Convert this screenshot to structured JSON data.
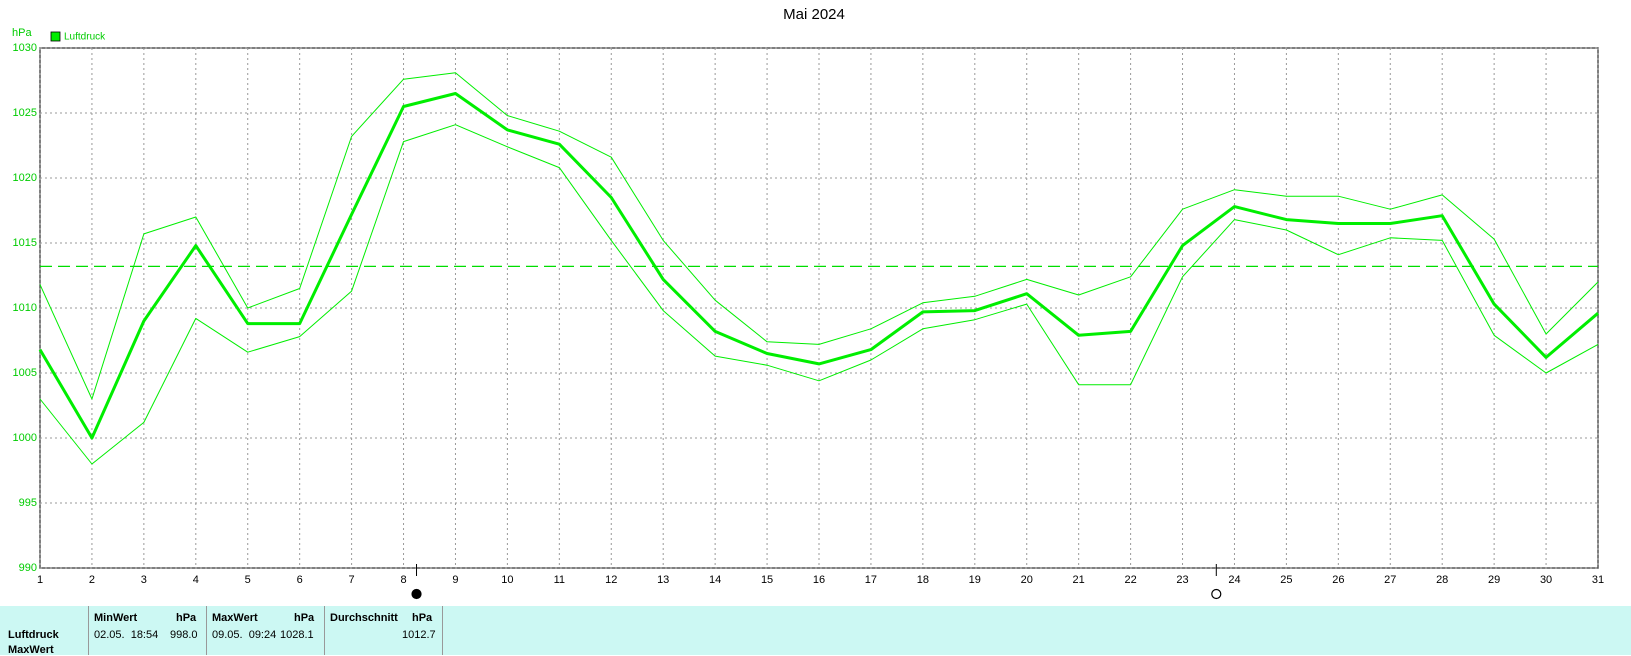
{
  "chart_data": {
    "type": "line",
    "title": "Mai 2024",
    "y_axis_label": "hPa",
    "x": [
      1,
      2,
      3,
      4,
      5,
      6,
      7,
      8,
      9,
      10,
      11,
      12,
      13,
      14,
      15,
      16,
      17,
      18,
      19,
      20,
      21,
      22,
      23,
      24,
      25,
      26,
      27,
      28,
      29,
      30,
      31
    ],
    "xlim": [
      1,
      31
    ],
    "xticks": [
      1,
      2,
      3,
      4,
      5,
      6,
      7,
      8,
      9,
      10,
      11,
      12,
      13,
      14,
      15,
      16,
      17,
      18,
      19,
      20,
      21,
      22,
      23,
      24,
      25,
      26,
      27,
      28,
      29,
      30,
      31
    ],
    "ylim": [
      990,
      1030
    ],
    "yticks": [
      990,
      995,
      1000,
      1005,
      1010,
      1015,
      1020,
      1025,
      1030
    ],
    "grid": true,
    "series": [
      {
        "name": "Luftdruck",
        "color": "#00ee00",
        "width": 3,
        "values": [
          1006.8,
          1000.0,
          1009.0,
          1014.8,
          1008.8,
          1008.8,
          1017.2,
          1025.5,
          1026.5,
          1023.7,
          1022.6,
          1018.5,
          1012.2,
          1008.2,
          1006.5,
          1005.7,
          1006.8,
          1009.7,
          1009.8,
          1011.1,
          1007.9,
          1008.2,
          1014.8,
          1017.8,
          1016.8,
          1016.5,
          1016.5,
          1017.1,
          1010.3,
          1006.2,
          1009.6
        ]
      },
      {
        "color": "#00ee00",
        "width": 1,
        "values": [
          1011.8,
          1003.0,
          1015.7,
          1017.0,
          1010.0,
          1011.5,
          1023.2,
          1027.6,
          1028.1,
          1024.8,
          1023.6,
          1021.6,
          1015.2,
          1010.6,
          1007.4,
          1007.2,
          1008.4,
          1010.4,
          1010.9,
          1012.2,
          1011.0,
          1012.4,
          1017.6,
          1019.1,
          1018.6,
          1018.6,
          1017.6,
          1018.7,
          1015.3,
          1008.0,
          1012.0
        ]
      },
      {
        "color": "#00ee00",
        "width": 1,
        "values": [
          1003.0,
          998.0,
          1001.2,
          1009.2,
          1006.6,
          1007.8,
          1011.3,
          1022.8,
          1024.1,
          1022.4,
          1020.8,
          1015.2,
          1009.8,
          1006.3,
          1005.6,
          1004.4,
          1006.0,
          1008.4,
          1009.1,
          1010.3,
          1004.1,
          1004.1,
          1012.4,
          1016.8,
          1016.0,
          1014.1,
          1015.4,
          1015.2,
          1007.9,
          1005.0,
          1007.2
        ]
      }
    ],
    "reference_line": 1013.2,
    "markers": [
      {
        "x": 8.25,
        "fill": "#000000"
      },
      {
        "x": 23.65,
        "fill": "#ffffff"
      }
    ]
  },
  "table": {
    "header": [
      [
        "MinWert",
        "hPa"
      ],
      [
        "MaxWert",
        "hPa"
      ],
      [
        "Durchschnitt",
        "hPa"
      ]
    ],
    "rows": [
      {
        "label": "Luftdruck",
        "cells": [
          [
            "02.05.  18:54",
            "998.0"
          ],
          [
            "09.05.  09:24",
            "1028.1"
          ],
          [
            "",
            "1012.7"
          ]
        ]
      }
    ],
    "next_row_label": "MaxWert"
  }
}
